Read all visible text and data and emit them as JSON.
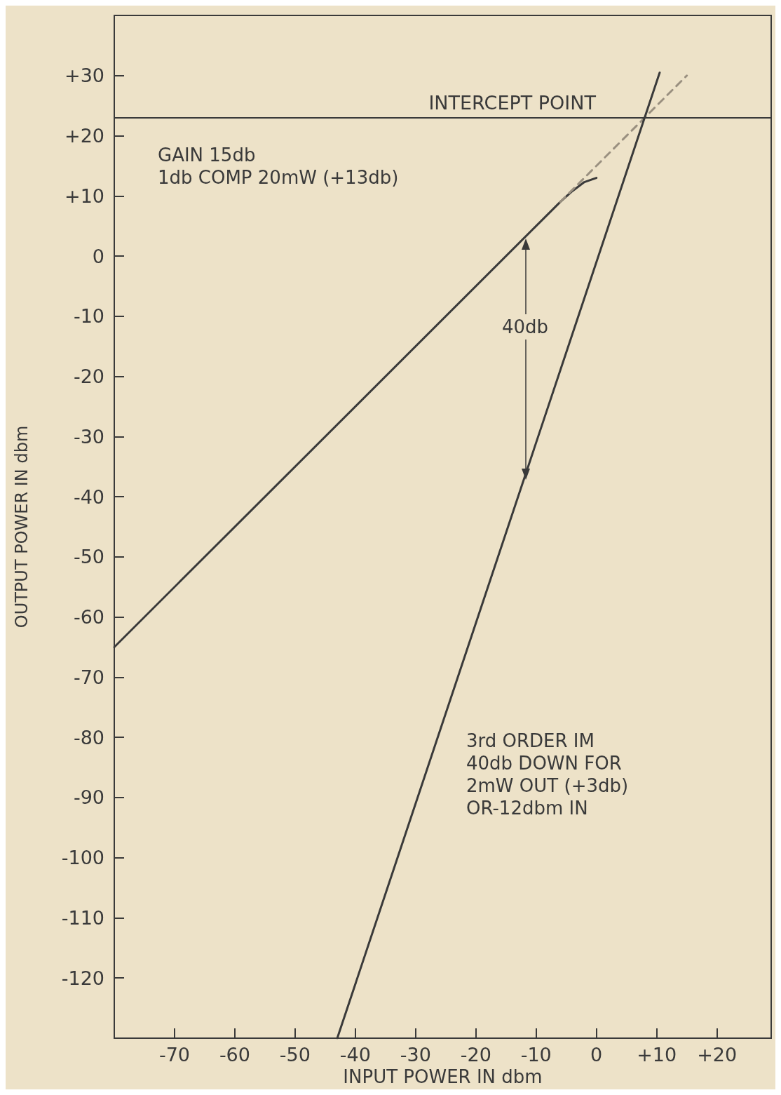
{
  "chart_data": {
    "type": "line",
    "xlabel": "INPUT POWER IN dbm",
    "ylabel": "OUTPUT POWER IN dbm",
    "xlim": [
      -80,
      29
    ],
    "ylim": [
      -130,
      40
    ],
    "xticks": [
      {
        "value": -70,
        "label": "-70"
      },
      {
        "value": -60,
        "label": "-60"
      },
      {
        "value": -50,
        "label": "-50"
      },
      {
        "value": -40,
        "label": "-40"
      },
      {
        "value": -30,
        "label": "-30"
      },
      {
        "value": -20,
        "label": "-20"
      },
      {
        "value": -10,
        "label": "-10"
      },
      {
        "value": 0,
        "label": "0"
      },
      {
        "value": 10,
        "label": "+10"
      },
      {
        "value": 20,
        "label": "+20"
      }
    ],
    "yticks": [
      {
        "value": -120,
        "label": "-120"
      },
      {
        "value": -110,
        "label": "-110"
      },
      {
        "value": -100,
        "label": "-100"
      },
      {
        "value": -90,
        "label": "-90"
      },
      {
        "value": -80,
        "label": "-80"
      },
      {
        "value": -70,
        "label": "-70"
      },
      {
        "value": -60,
        "label": "-60"
      },
      {
        "value": -50,
        "label": "-50"
      },
      {
        "value": -40,
        "label": "-40"
      },
      {
        "value": -30,
        "label": "-30"
      },
      {
        "value": -20,
        "label": "-20"
      },
      {
        "value": -10,
        "label": "-10"
      },
      {
        "value": 0,
        "label": "0"
      },
      {
        "value": 10,
        "label": "+10"
      },
      {
        "value": 20,
        "label": "+20"
      },
      {
        "value": 30,
        "label": "+30"
      }
    ],
    "grid": false,
    "marker": "none",
    "series": [
      {
        "color": "#3a3a3a",
        "x": [
          -80,
          -6,
          -4,
          -2,
          0
        ],
        "values": [
          -65,
          9,
          10.8,
          12.3,
          13
        ],
        "line_style": "solid"
      },
      {
        "color": "#9a9080",
        "x": [
          -6,
          15
        ],
        "values": [
          9,
          30
        ],
        "line_style": "dashed"
      },
      {
        "color": "#3a3a3a",
        "x": [
          -43,
          10.5
        ],
        "values": [
          -130,
          30.5
        ],
        "line_style": "solid"
      }
    ],
    "ref_lines": [
      {
        "axis": "y",
        "value": 23,
        "label": "INTERCEPT POINT",
        "color": "#3a3a3a"
      }
    ],
    "annotations": [
      "GAIN 15db\n1db COMP 20mW (+13db)",
      "40db",
      "3rd ORDER IM\n40db DOWN FOR\n2mW OUT (+3db)\nOR-12dbm IN"
    ]
  }
}
